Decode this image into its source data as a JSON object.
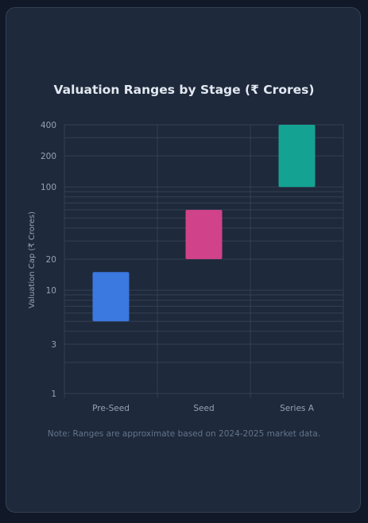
{
  "chart_data": {
    "type": "bar",
    "subtype": "floating-range",
    "title": "Valuation Ranges by Stage (₹ Crores)",
    "xlabel": "",
    "ylabel": "Valuation Cap (₹ Crores)",
    "y_scale": "log",
    "ylim": [
      1,
      400
    ],
    "y_ticks": [
      1,
      3,
      10,
      20,
      100,
      200,
      400
    ],
    "grid": true,
    "legend": "none",
    "categories": [
      "Pre-Seed",
      "Seed",
      "Series A"
    ],
    "series": [
      {
        "ranges": [
          [
            5,
            15
          ],
          [
            20,
            60
          ],
          [
            100,
            400
          ]
        ],
        "colors": [
          "#3b78e0",
          "#d0428a",
          "#14a393"
        ]
      }
    ]
  },
  "note": "Note: Ranges are approximate based on 2024-2025 market data.",
  "theme": {
    "grid_color": "#334155",
    "tick_color": "#94a3b8",
    "axis_label_color": "#94a3b8"
  }
}
